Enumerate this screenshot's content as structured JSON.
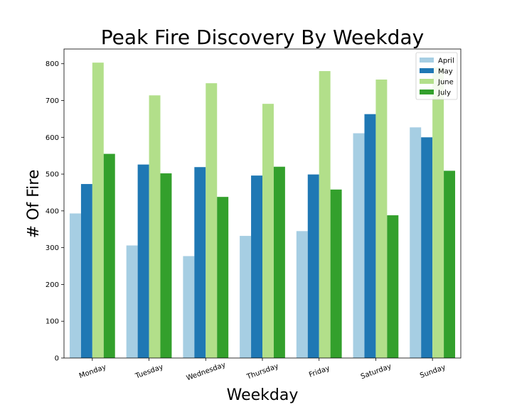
{
  "chart_data": {
    "type": "bar",
    "title": "Peak Fire Discovery By Weekday",
    "xlabel": "Weekday",
    "ylabel": "# Of Fire",
    "categories": [
      "Monday",
      "Tuesday",
      "Wednesday",
      "Thursday",
      "Friday",
      "Saturday",
      "Sunday"
    ],
    "series": [
      {
        "name": "April",
        "color": "#a6cee3",
        "values": [
          393,
          306,
          277,
          332,
          345,
          611,
          627
        ]
      },
      {
        "name": "May",
        "color": "#1f78b4",
        "values": [
          473,
          526,
          519,
          496,
          499,
          663,
          600
        ]
      },
      {
        "name": "June",
        "color": "#b2df8a",
        "values": [
          803,
          714,
          747,
          691,
          780,
          757,
          790
        ]
      },
      {
        "name": "July",
        "color": "#33a02c",
        "values": [
          555,
          502,
          438,
          520,
          458,
          388,
          509
        ]
      }
    ],
    "ylim": [
      0,
      840
    ],
    "yticks": [
      0,
      100,
      200,
      300,
      400,
      500,
      600,
      700,
      800
    ],
    "grid": false,
    "legend_position": "top-right"
  }
}
